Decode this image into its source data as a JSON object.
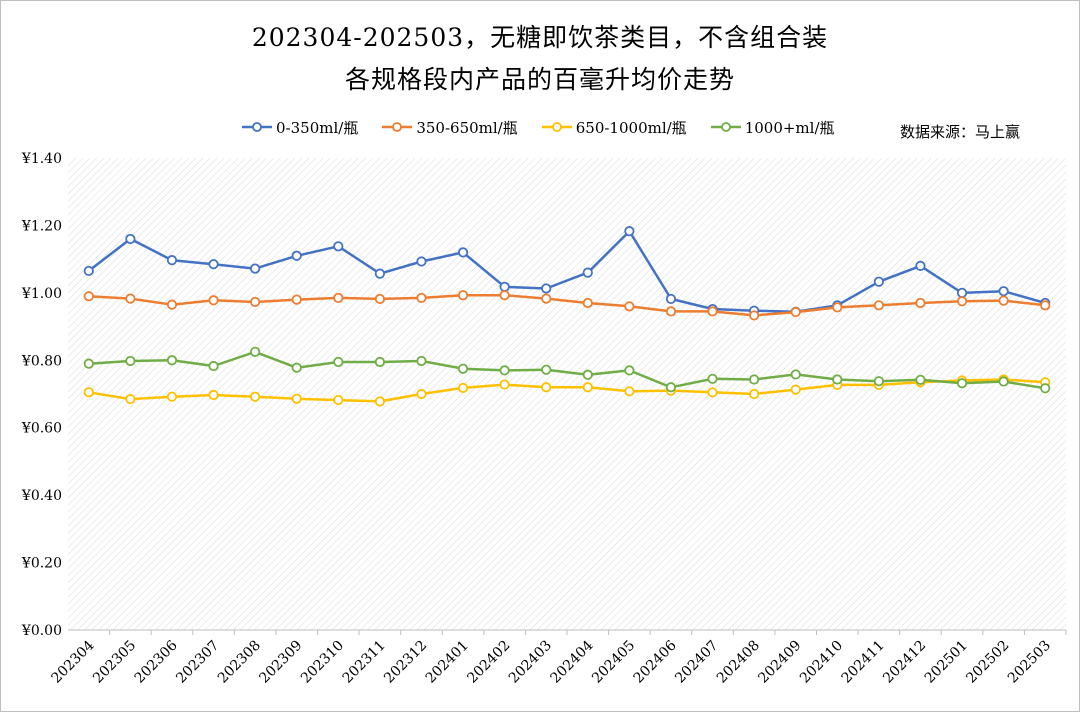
{
  "title_line1": "202304-202503，无糖即饮茶类目，不含组合装",
  "title_line2": "各规格段内产品的百毫升均价走势",
  "source": "数据来源：马上赢",
  "chart_data": {
    "type": "line",
    "title": "202304-202503，无糖即饮茶类目，不含组合装 各规格段内产品的百毫升均价走势",
    "xlabel": "",
    "ylabel": "",
    "ylim": [
      0,
      1.4
    ],
    "yticks": [
      "¥0.00",
      "¥0.20",
      "¥0.40",
      "¥0.60",
      "¥0.80",
      "¥1.00",
      "¥1.20",
      "¥1.40"
    ],
    "grid": false,
    "legend_position": "top",
    "categories": [
      "202304",
      "202305",
      "202306",
      "202307",
      "202308",
      "202309",
      "202310",
      "202311",
      "202312",
      "202401",
      "202402",
      "202403",
      "202404",
      "202405",
      "202406",
      "202407",
      "202408",
      "202409",
      "202410",
      "202411",
      "202412",
      "202501",
      "202502",
      "202503"
    ],
    "series": [
      {
        "name": "0-350ml/瓶",
        "color": "#4472c4",
        "values": [
          1.065,
          1.16,
          1.097,
          1.085,
          1.072,
          1.11,
          1.138,
          1.057,
          1.093,
          1.12,
          1.018,
          1.013,
          1.06,
          1.183,
          0.982,
          0.952,
          0.947,
          0.944,
          0.963,
          1.033,
          1.08,
          1.0,
          1.005,
          0.97
        ]
      },
      {
        "name": "350-650ml/瓶",
        "color": "#ed7d31",
        "values": [
          0.99,
          0.983,
          0.965,
          0.978,
          0.973,
          0.98,
          0.985,
          0.982,
          0.985,
          0.993,
          0.993,
          0.983,
          0.97,
          0.96,
          0.945,
          0.945,
          0.933,
          0.943,
          0.957,
          0.963,
          0.97,
          0.975,
          0.977,
          0.963
        ]
      },
      {
        "name": "650-1000ml/瓶",
        "color": "#ffc000",
        "values": [
          0.705,
          0.685,
          0.692,
          0.697,
          0.692,
          0.686,
          0.682,
          0.678,
          0.7,
          0.718,
          0.728,
          0.72,
          0.72,
          0.708,
          0.71,
          0.705,
          0.7,
          0.713,
          0.727,
          0.727,
          0.735,
          0.74,
          0.743,
          0.735
        ]
      },
      {
        "name": "1000+ml/瓶",
        "color": "#70ad47",
        "values": [
          0.79,
          0.798,
          0.8,
          0.783,
          0.825,
          0.778,
          0.795,
          0.795,
          0.798,
          0.775,
          0.77,
          0.772,
          0.757,
          0.77,
          0.72,
          0.745,
          0.743,
          0.758,
          0.743,
          0.738,
          0.742,
          0.732,
          0.737,
          0.717
        ]
      }
    ]
  }
}
